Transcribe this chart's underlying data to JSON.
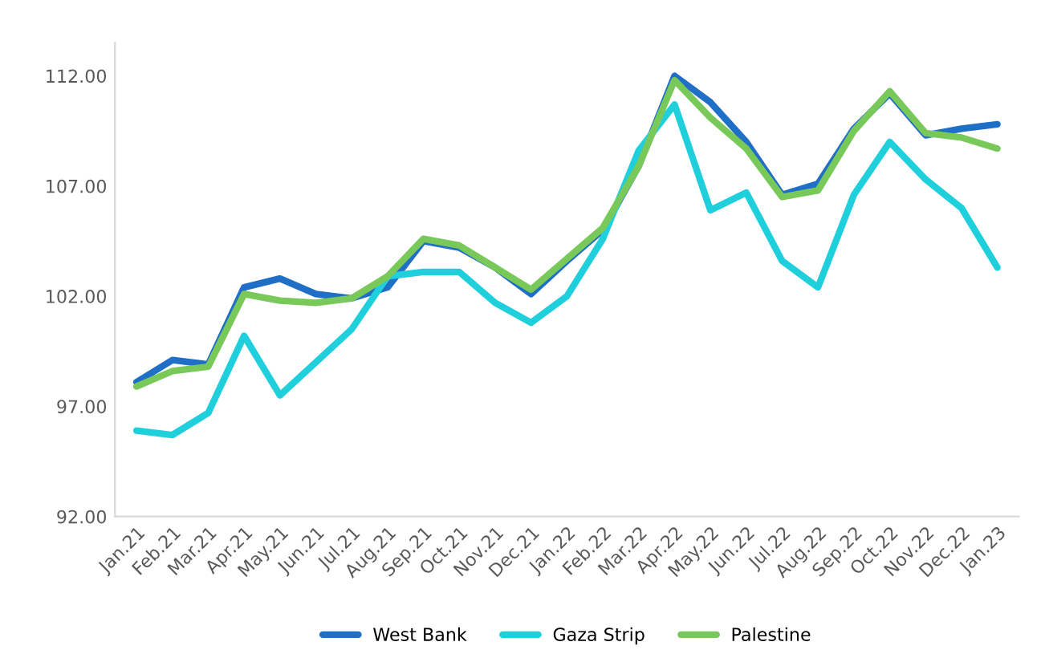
{
  "chart_data": {
    "type": "line",
    "categories": [
      "Jan.21",
      "Feb.21",
      "Mar.21",
      "Apr.21",
      "May.21",
      "Jun.21",
      "Jul.21",
      "Aug.21",
      "Sep.21",
      "Oct.21",
      "Nov.21",
      "Dec.21",
      "Jan.22",
      "Feb.22",
      "Mar.22",
      "Apr.22",
      "May.22",
      "Jun.22",
      "Jul.22",
      "Aug.22",
      "Sep.22",
      "Oct.22",
      "Nov.22",
      "Dec.22",
      "Jan.23"
    ],
    "series": [
      {
        "name": "West Bank",
        "color": "#1f6fc6",
        "values": [
          98.1,
          99.1,
          98.9,
          102.4,
          102.8,
          102.1,
          101.9,
          102.4,
          104.5,
          104.2,
          103.3,
          102.1,
          103.6,
          105.0,
          107.9,
          112.0,
          110.8,
          109.0,
          106.6,
          107.1,
          109.6,
          111.2,
          109.3,
          109.6,
          109.8
        ]
      },
      {
        "name": "Gaza Strip",
        "color": "#1fd0dc",
        "values": [
          95.9,
          95.7,
          96.7,
          100.2,
          97.5,
          99.0,
          100.5,
          102.9,
          103.1,
          103.1,
          101.7,
          100.8,
          102.0,
          104.6,
          108.6,
          110.7,
          105.9,
          106.7,
          103.6,
          102.4,
          106.6,
          109.0,
          107.3,
          106.0,
          103.3
        ]
      },
      {
        "name": "Palestine",
        "color": "#79c95a",
        "values": [
          97.9,
          98.6,
          98.8,
          102.1,
          101.8,
          101.7,
          101.9,
          102.9,
          104.6,
          104.3,
          103.3,
          102.3,
          103.7,
          105.1,
          107.9,
          111.8,
          110.1,
          108.7,
          106.5,
          106.8,
          109.5,
          111.3,
          109.4,
          109.2,
          108.7
        ]
      }
    ],
    "ylim": [
      92,
      113.5
    ],
    "yticks": [
      {
        "value": 92,
        "label": "92.00"
      },
      {
        "value": 97,
        "label": "97.00"
      },
      {
        "value": 102,
        "label": "102.00"
      },
      {
        "value": 107,
        "label": "107.00"
      },
      {
        "value": 112,
        "label": "112.00"
      }
    ],
    "grid": false,
    "legend": "bottom",
    "marker": "none",
    "line_style": "solid"
  }
}
